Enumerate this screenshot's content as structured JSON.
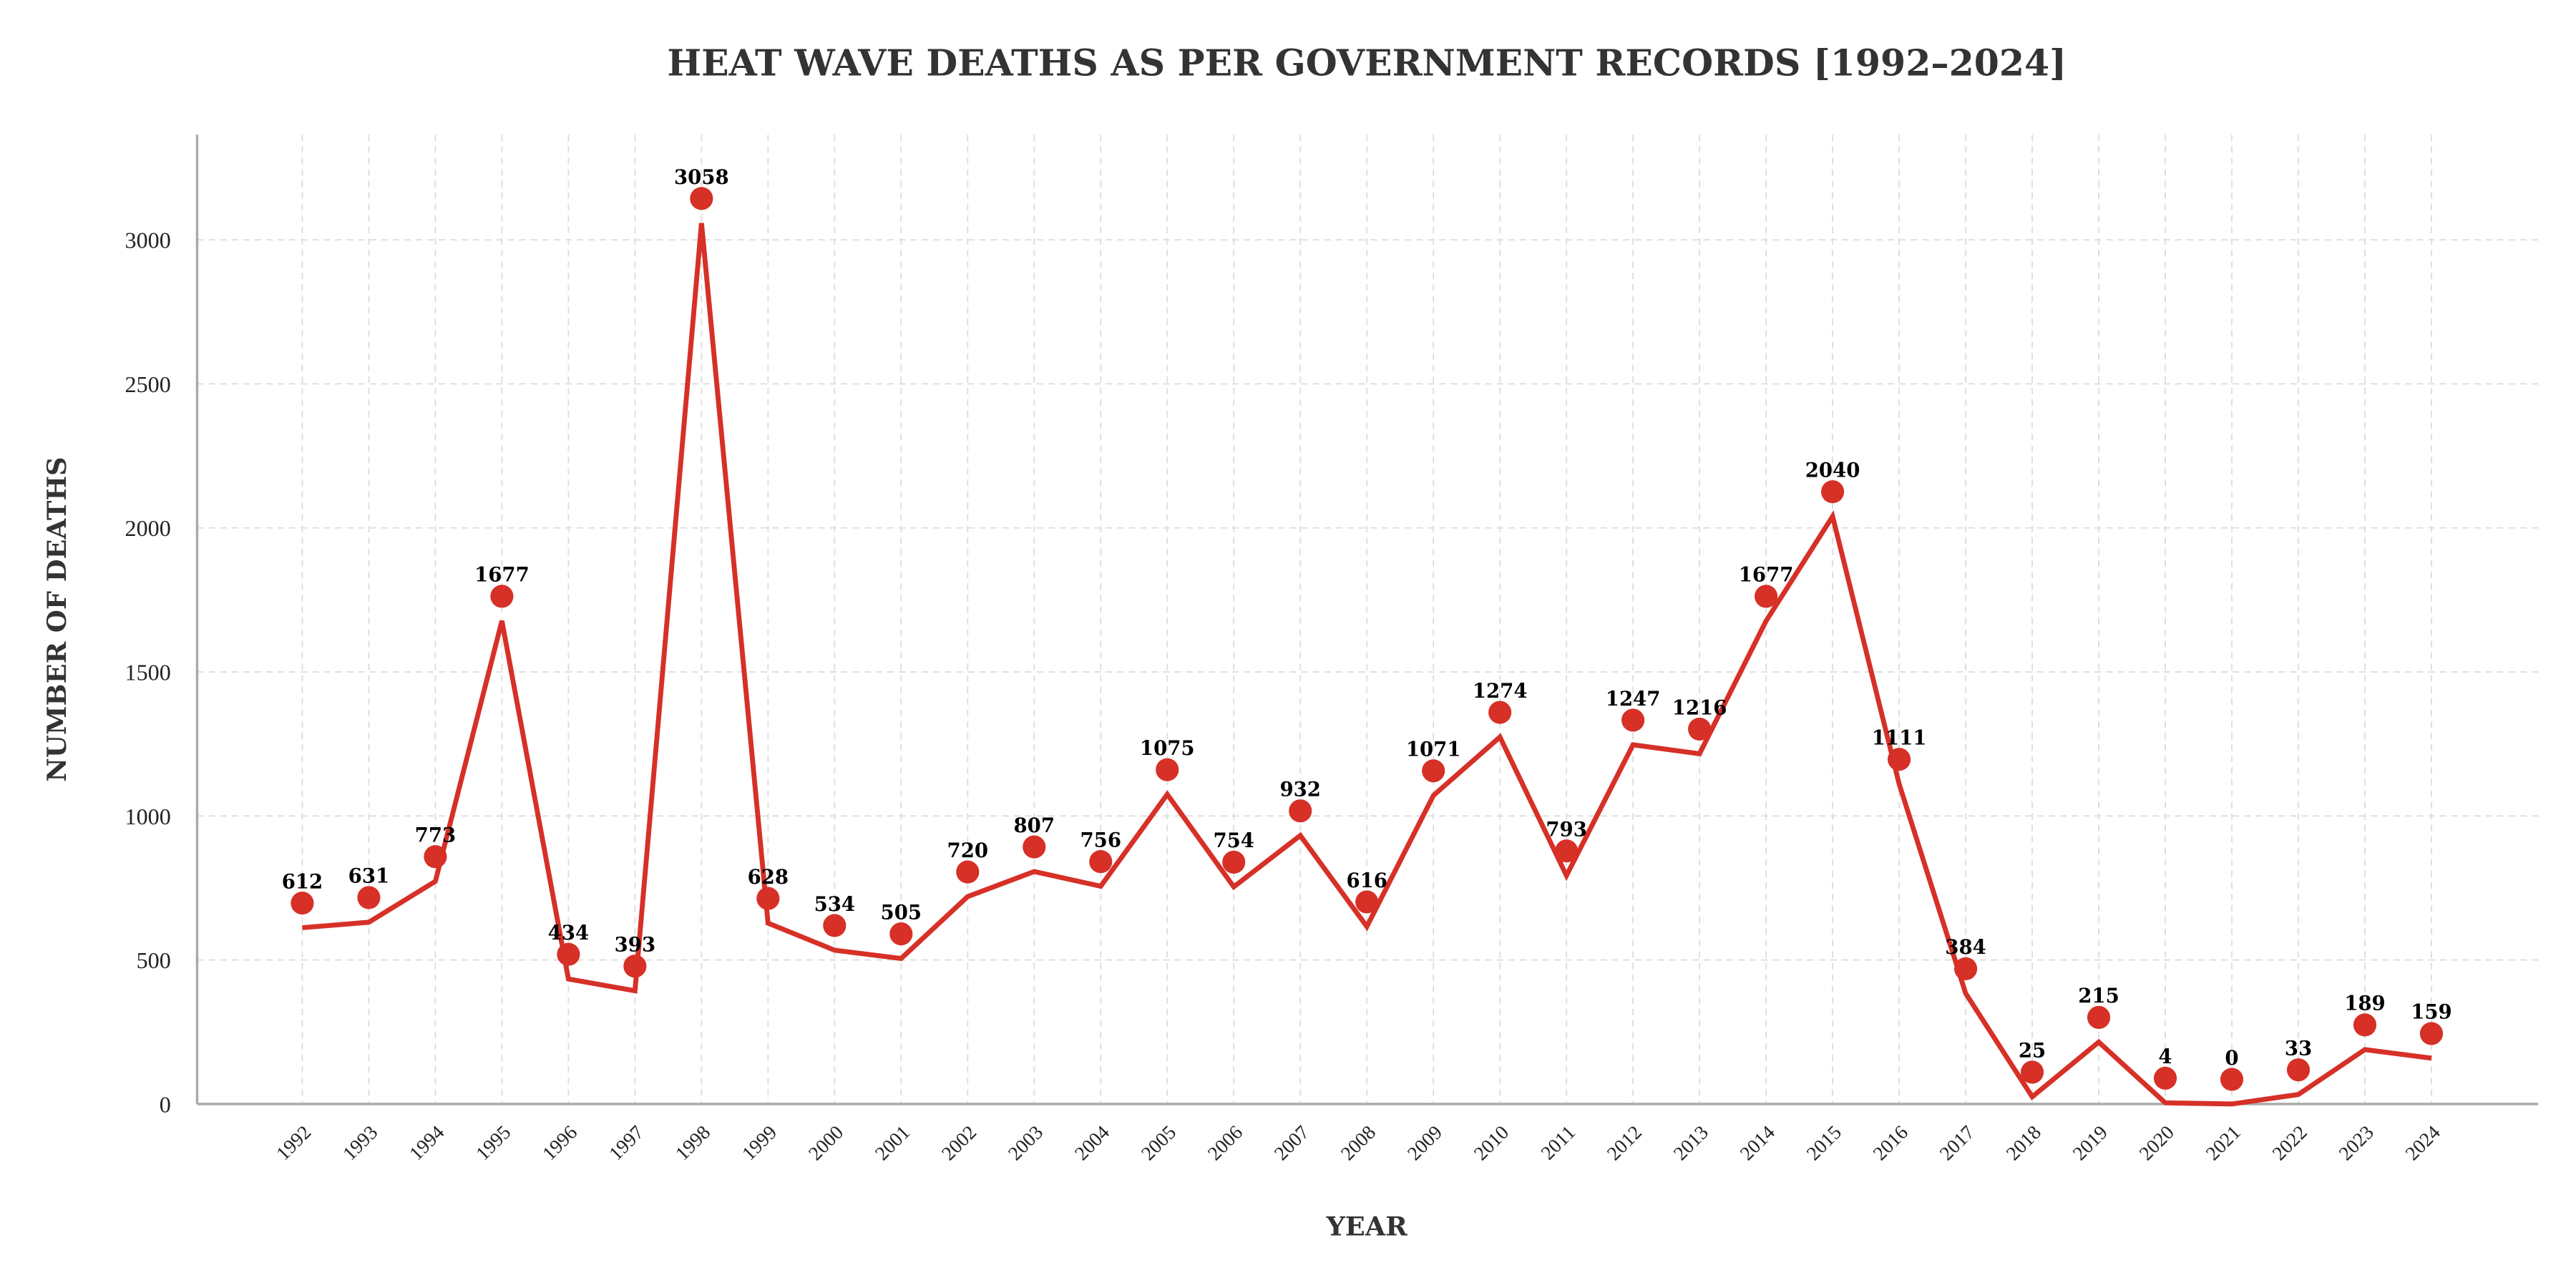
{
  "chart_data": {
    "type": "line",
    "title": "HEAT WAVE DEATHS AS PER GOVERNMENT RECORDS [1992–2024]",
    "xlabel": "YEAR",
    "ylabel": "NUMBER OF DEATHS",
    "x": [
      "1992",
      "1993",
      "1994",
      "1995",
      "1996",
      "1997",
      "1998",
      "1999",
      "2000",
      "2001",
      "2002",
      "2003",
      "2004",
      "2005",
      "2006",
      "2007",
      "2008",
      "2009",
      "2010",
      "2011",
      "2012",
      "2013",
      "2014",
      "2015",
      "2016",
      "2017",
      "2018",
      "2019",
      "2020",
      "2021",
      "2022",
      "2023",
      "2024"
    ],
    "values": [
      612,
      631,
      773,
      1677,
      434,
      393,
      3058,
      628,
      534,
      505,
      720,
      807,
      756,
      1075,
      754,
      932,
      616,
      1071,
      1274,
      793,
      1247,
      1216,
      1677,
      2040,
      1111,
      384,
      25,
      215,
      4,
      0,
      33,
      189,
      159
    ],
    "yticks": [
      "0",
      "500",
      "1000",
      "1500",
      "2000",
      "2500",
      "3000"
    ],
    "ylim": [
      0,
      3370
    ],
    "grid": true,
    "line_color": "#d63027",
    "marker": "circle",
    "data_labels": true
  }
}
